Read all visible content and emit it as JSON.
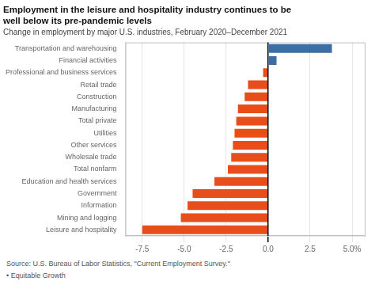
{
  "chart_data": {
    "type": "bar",
    "orientation": "horizontal",
    "title": [
      "Employment in the leisure and hospitality industry continues to be",
      "well below its pre-pandemic levels"
    ],
    "subtitle": "Change in employment by major U.S. industries, February 2020–December 2021",
    "annotations": [
      "Source: U.S. Bureau of Labor Statistics, \"Current Employment Survey.\"",
      "• Equitable Growth"
    ],
    "categories": [
      "Transportation and warehousing",
      "Financial activities",
      "Professional and business services",
      "Retail trade",
      "Construction",
      "Manufacturing",
      "Total private",
      "Utilities",
      "Other services",
      "Wholesale trade",
      "Total nonfarm",
      "Education and health services",
      "Government",
      "Information",
      "Mining and logging",
      "Leisure and hospitality"
    ],
    "values": [
      3.8,
      0.5,
      -0.3,
      -1.2,
      -1.4,
      -1.8,
      -1.9,
      -2.0,
      -2.1,
      -2.2,
      -2.4,
      -3.2,
      -4.5,
      -4.8,
      -5.2,
      -7.5
    ],
    "colors": [
      "#3A6EA5",
      "#3A6EA5",
      "#E84E1B",
      "#E84E1B",
      "#E84E1B",
      "#E84E1B",
      "#E84E1B",
      "#E84E1B",
      "#E84E1B",
      "#E84E1B",
      "#E84E1B",
      "#E84E1B",
      "#E84E1B",
      "#E84E1B",
      "#E84E1B",
      "#E84E1B"
    ],
    "xlim": [
      -8.5,
      5.8
    ],
    "xticks": [
      -7.5,
      {
        "value": -5.0,
        "label": "-5.0"
      },
      -2.5,
      {
        "value": 0.0,
        "label": "0.0"
      },
      2.5,
      {
        "value": 5.0,
        "label": "5.0%"
      }
    ],
    "grid": true
  }
}
